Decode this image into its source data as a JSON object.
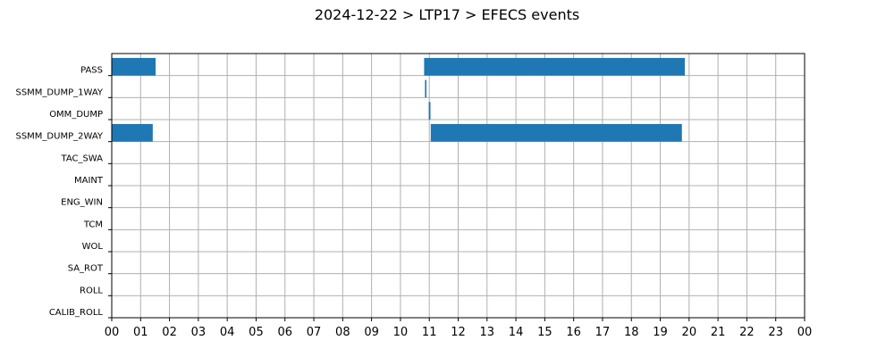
{
  "chart_data": {
    "type": "bar",
    "orientation": "horizontal-gantt",
    "title": "2024-12-22 > LTP17 > EFECS events",
    "xlabel": "",
    "ylabel": "",
    "xlim": [
      0,
      24
    ],
    "x_unit": "hour",
    "grid": true,
    "bar_color": "#1f77b4",
    "categories": [
      "PASS",
      "SSMM_DUMP_1WAY",
      "OMM_DUMP",
      "SSMM_DUMP_2WAY",
      "TAC_SWA",
      "MAINT",
      "ENG_WIN",
      "TCM",
      "WOL",
      "SA_ROT",
      "ROLL",
      "CALIB_ROLL"
    ],
    "x_tick_labels": [
      "00",
      "01",
      "02",
      "03",
      "04",
      "05",
      "06",
      "07",
      "08",
      "09",
      "10",
      "11",
      "12",
      "13",
      "14",
      "15",
      "16",
      "17",
      "18",
      "19",
      "20",
      "21",
      "22",
      "23",
      "00"
    ],
    "events": [
      {
        "category": "PASS",
        "start": 0.0,
        "end": 1.52
      },
      {
        "category": "PASS",
        "start": 10.82,
        "end": 19.85
      },
      {
        "category": "SSMM_DUMP_1WAY",
        "start": 10.85,
        "end": 10.9
      },
      {
        "category": "OMM_DUMP",
        "start": 10.98,
        "end": 11.04
      },
      {
        "category": "SSMM_DUMP_2WAY",
        "start": 0.0,
        "end": 1.42
      },
      {
        "category": "SSMM_DUMP_2WAY",
        "start": 11.05,
        "end": 19.75
      }
    ]
  }
}
